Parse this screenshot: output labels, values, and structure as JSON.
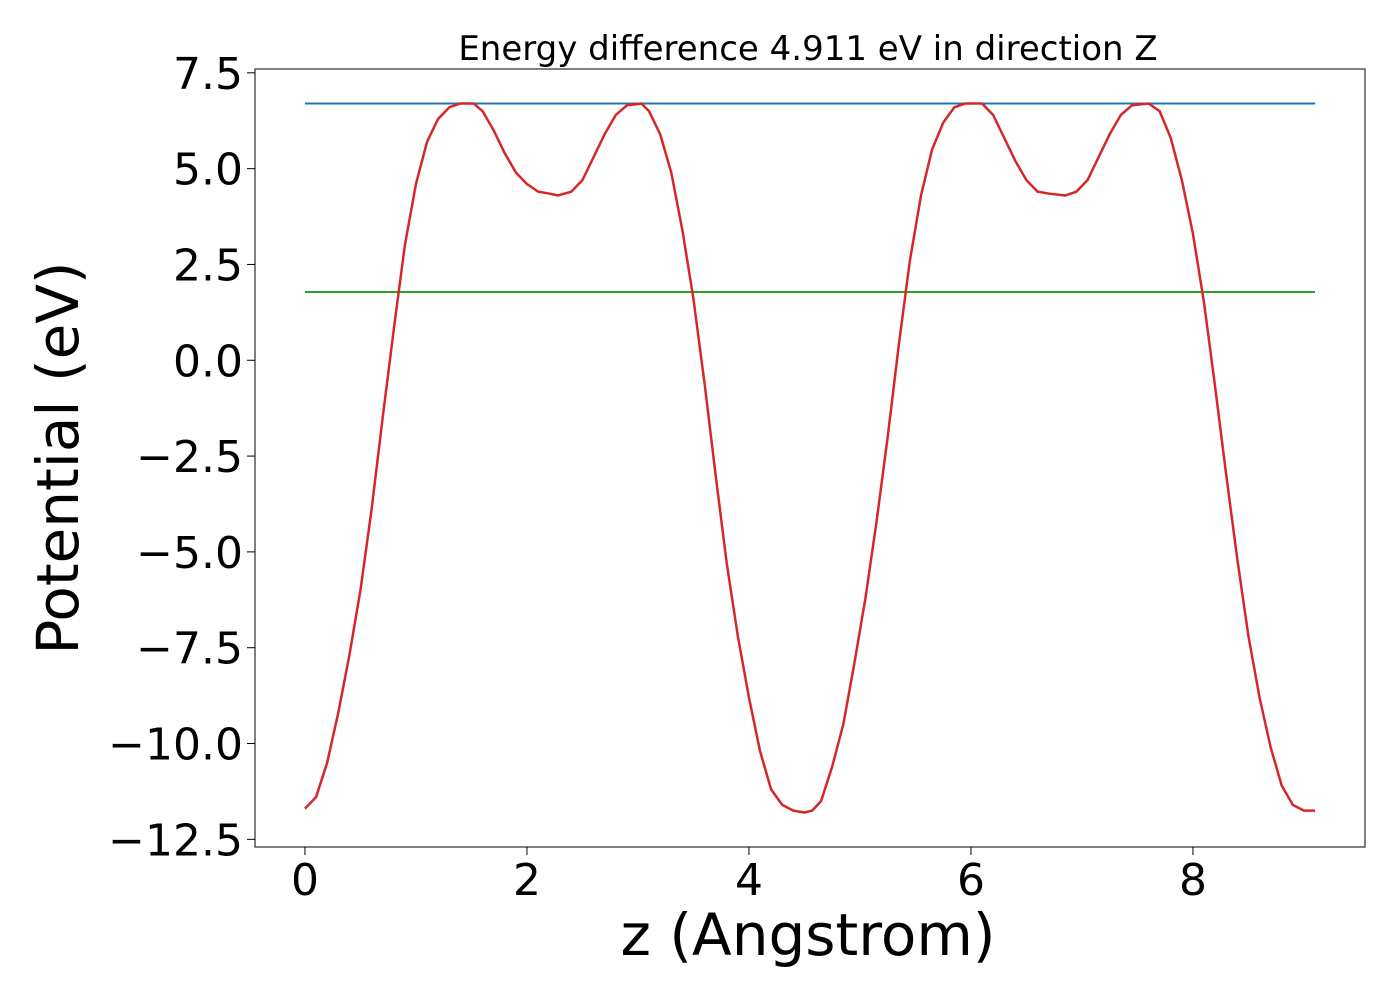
{
  "chart_data": {
    "type": "line",
    "title": "Energy difference 4.911 eV in direction Z",
    "xlabel": "z (Angstrom)",
    "ylabel": "Potential (eV)",
    "xlim": [
      -0.45,
      9.55
    ],
    "ylim": [
      -12.7,
      7.6
    ],
    "x_ticks": [
      0,
      2,
      4,
      6,
      8
    ],
    "x_tick_labels": [
      "0",
      "2",
      "4",
      "6",
      "8"
    ],
    "y_ticks": [
      7.5,
      5.0,
      2.5,
      0.0,
      -2.5,
      -5.0,
      -7.5,
      -10.0,
      -12.5
    ],
    "y_tick_labels": [
      "7.5",
      "5.0",
      "2.5",
      "0.0",
      "−2.5",
      "−5.0",
      "−7.5",
      "−10.0",
      "−12.5"
    ],
    "grid": false,
    "legend": "none",
    "series": [
      {
        "color": "#d62728",
        "x": [
          0.0,
          0.1,
          0.2,
          0.3,
          0.4,
          0.5,
          0.6,
          0.7,
          0.8,
          0.9,
          1.0,
          1.1,
          1.2,
          1.3,
          1.4,
          1.52,
          1.6,
          1.7,
          1.8,
          1.9,
          2.0,
          2.1,
          2.2,
          2.28,
          2.4,
          2.5,
          2.6,
          2.7,
          2.8,
          2.9,
          3.03,
          3.1,
          3.2,
          3.3,
          3.4,
          3.5,
          3.6,
          3.7,
          3.8,
          3.9,
          4.0,
          4.1,
          4.2,
          4.3,
          4.4,
          4.5,
          4.57,
          4.65,
          4.75,
          4.85,
          4.95,
          5.05,
          5.15,
          5.25,
          5.35,
          5.45,
          5.55,
          5.65,
          5.75,
          5.85,
          5.95,
          6.1,
          6.2,
          6.3,
          6.4,
          6.5,
          6.6,
          6.7,
          6.85,
          6.95,
          7.05,
          7.15,
          7.25,
          7.35,
          7.45,
          7.6,
          7.7,
          7.8,
          7.9,
          8.0,
          8.1,
          8.2,
          8.3,
          8.4,
          8.5,
          8.6,
          8.7,
          8.8,
          8.9,
          9.0,
          9.1
        ],
        "y": [
          -11.7,
          -11.4,
          -10.5,
          -9.2,
          -7.7,
          -6.0,
          -3.9,
          -1.5,
          0.8,
          3.0,
          4.6,
          5.7,
          6.3,
          6.6,
          6.7,
          6.7,
          6.5,
          6.0,
          5.4,
          4.9,
          4.6,
          4.4,
          4.35,
          4.3,
          4.4,
          4.7,
          5.3,
          5.9,
          6.4,
          6.65,
          6.7,
          6.5,
          5.9,
          4.9,
          3.4,
          1.6,
          -0.6,
          -3.0,
          -5.3,
          -7.2,
          -8.8,
          -10.2,
          -11.2,
          -11.6,
          -11.75,
          -11.8,
          -11.75,
          -11.5,
          -10.6,
          -9.5,
          -7.9,
          -6.2,
          -4.2,
          -2.0,
          0.4,
          2.6,
          4.3,
          5.5,
          6.2,
          6.6,
          6.7,
          6.7,
          6.4,
          5.8,
          5.2,
          4.7,
          4.4,
          4.35,
          4.3,
          4.4,
          4.7,
          5.3,
          5.9,
          6.4,
          6.65,
          6.7,
          6.5,
          5.8,
          4.7,
          3.3,
          1.5,
          -0.7,
          -3.0,
          -5.2,
          -7.2,
          -8.8,
          -10.1,
          -11.1,
          -11.6,
          -11.75,
          -11.75
        ]
      },
      {
        "color": "#1f77b4",
        "x": [
          0.0,
          9.1
        ],
        "y": [
          6.7,
          6.7
        ]
      },
      {
        "color": "#2ca02c",
        "x": [
          0.0,
          9.1
        ],
        "y": [
          1.78,
          1.78
        ]
      }
    ]
  }
}
